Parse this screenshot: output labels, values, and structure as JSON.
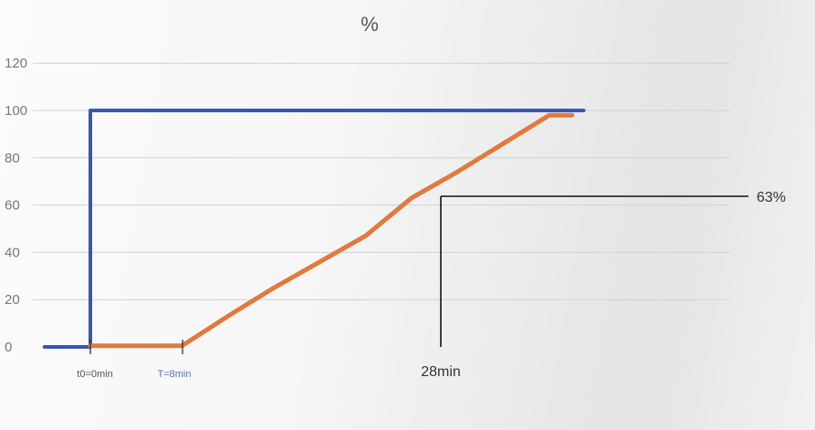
{
  "chart_data": {
    "type": "line",
    "title": "%",
    "ylim": [
      0,
      120
    ],
    "yticks": [
      0,
      20,
      40,
      60,
      80,
      100,
      120
    ],
    "grid": true,
    "x_range_min": [
      -4,
      43
    ],
    "series": [
      {
        "color": "#3a56b0",
        "points": [
          [
            -4,
            0
          ],
          [
            0,
            0
          ],
          [
            0,
            100
          ],
          [
            43,
            100
          ]
        ]
      },
      {
        "color": "#e07a3e",
        "points": [
          [
            0,
            0.5
          ],
          [
            8,
            0.5
          ],
          [
            12,
            13
          ],
          [
            16,
            25
          ],
          [
            20,
            36
          ],
          [
            24,
            47
          ],
          [
            28,
            63
          ],
          [
            32,
            74
          ],
          [
            36,
            86
          ],
          [
            40,
            98
          ],
          [
            42,
            98
          ]
        ]
      }
    ],
    "annotations": [
      {
        "text": "t0=0min",
        "x": 0
      },
      {
        "text": "T=8min",
        "x": 8
      },
      {
        "text": "28min",
        "x": 28
      },
      {
        "text": "63%",
        "y": 63
      }
    ]
  }
}
